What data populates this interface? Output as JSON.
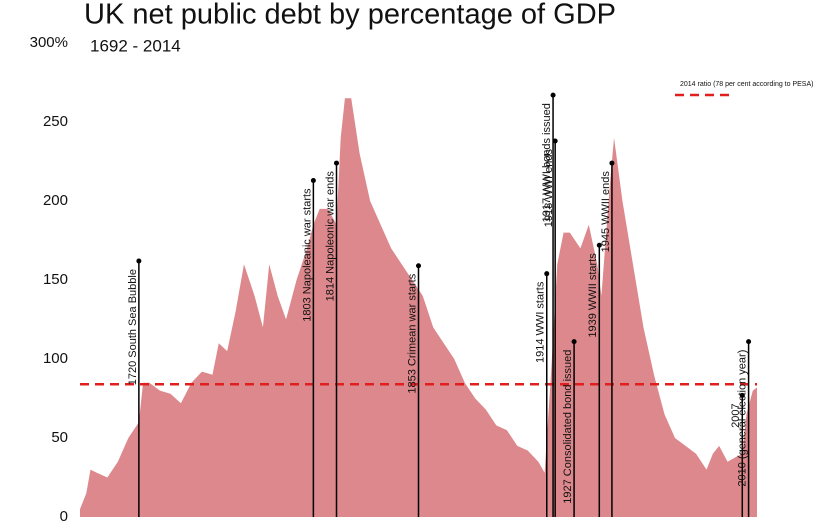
{
  "chart_data": {
    "type": "area",
    "title": "UK net public debt by percentage of GDP",
    "subtitle": "1692 - 2014",
    "x": [
      1692,
      1695,
      1697,
      1700,
      1705,
      1710,
      1715,
      1720,
      1722,
      1725,
      1730,
      1735,
      1740,
      1745,
      1750,
      1755,
      1758,
      1762,
      1766,
      1770,
      1775,
      1779,
      1782,
      1786,
      1790,
      1795,
      1800,
      1803,
      1806,
      1810,
      1814,
      1816,
      1818,
      1821,
      1825,
      1830,
      1835,
      1840,
      1845,
      1850,
      1855,
      1860,
      1865,
      1870,
      1875,
      1880,
      1885,
      1890,
      1895,
      1900,
      1905,
      1910,
      1913,
      1916,
      1919,
      1922,
      1925,
      1930,
      1934,
      1938,
      1940,
      1944,
      1946,
      1950,
      1955,
      1960,
      1965,
      1970,
      1975,
      1980,
      1985,
      1990,
      1993,
      1996,
      2000,
      2004,
      2007,
      2009,
      2012,
      2014
    ],
    "series": [
      {
        "name": "UK net public debt",
        "color": "#dc888c",
        "values": [
          5,
          15,
          30,
          28,
          25,
          35,
          50,
          60,
          85,
          85,
          80,
          78,
          72,
          85,
          92,
          90,
          110,
          105,
          130,
          160,
          140,
          120,
          160,
          140,
          125,
          150,
          170,
          185,
          195,
          195,
          185,
          240,
          265,
          265,
          230,
          200,
          185,
          170,
          160,
          150,
          140,
          120,
          110,
          100,
          85,
          75,
          68,
          58,
          55,
          45,
          42,
          35,
          28,
          90,
          160,
          180,
          180,
          170,
          185,
          160,
          140,
          210,
          240,
          200,
          160,
          120,
          90,
          65,
          50,
          45,
          40,
          30,
          40,
          45,
          35,
          38,
          40,
          65,
          80,
          82
        ]
      }
    ],
    "xlim": [
      1692,
      2014
    ],
    "ylim": [
      0,
      300
    ],
    "yticks": [
      0,
      50,
      100,
      150,
      200,
      250,
      {
        "value": 300,
        "label": "300%"
      }
    ],
    "reference_line": {
      "value": 84,
      "label": "2014 ratio (78 per cent according to PESA)",
      "color": "#e0201f"
    },
    "annotations": [
      {
        "text": "1720 South Sea Bubble",
        "x": 1720,
        "y": 162
      },
      {
        "text": "1803 Napoleanic  war starts",
        "x": 1803,
        "y": 213
      },
      {
        "text": "1814 Napoleonic war ends",
        "x": 1814,
        "y": 224
      },
      {
        "text": "1853 Crimean war starts",
        "x": 1853,
        "y": 159
      },
      {
        "text": "1914 WWI starts",
        "x": 1914,
        "y": 154
      },
      {
        "text": "1917 WWI bonds issued",
        "x": 1917,
        "y": 267
      },
      {
        "text": "1918 WWI ends",
        "x": 1918,
        "y": 238
      },
      {
        "text": "1927 Consolidated bond issued",
        "x": 1927,
        "y": 111
      },
      {
        "text": "1939 WWII starts",
        "x": 1939,
        "y": 172
      },
      {
        "text": "1945 WWII ends",
        "x": 1945,
        "y": 224
      },
      {
        "text": "2007",
        "x": 2007,
        "y": 77
      },
      {
        "text": "2010 (general election year)",
        "x": 2010,
        "y": 111
      }
    ]
  }
}
